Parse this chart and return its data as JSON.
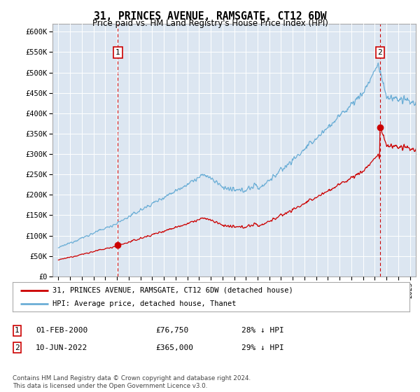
{
  "title": "31, PRINCES AVENUE, RAMSGATE, CT12 6DW",
  "subtitle": "Price paid vs. HM Land Registry's House Price Index (HPI)",
  "ylim": [
    0,
    620000
  ],
  "yticks": [
    0,
    50000,
    100000,
    150000,
    200000,
    250000,
    300000,
    350000,
    400000,
    450000,
    500000,
    550000,
    600000
  ],
  "ytick_labels": [
    "£0",
    "£50K",
    "£100K",
    "£150K",
    "£200K",
    "£250K",
    "£300K",
    "£350K",
    "£400K",
    "£450K",
    "£500K",
    "£550K",
    "£600K"
  ],
  "sale1_date_x": 2000.08,
  "sale1_price": 76750,
  "sale1_label": "1",
  "sale2_date_x": 2022.44,
  "sale2_price": 365000,
  "sale2_label": "2",
  "legend_line1": "31, PRINCES AVENUE, RAMSGATE, CT12 6DW (detached house)",
  "legend_line2": "HPI: Average price, detached house, Thanet",
  "table_row1": [
    "1",
    "01-FEB-2000",
    "£76,750",
    "28% ↓ HPI"
  ],
  "table_row2": [
    "2",
    "10-JUN-2022",
    "£365,000",
    "29% ↓ HPI"
  ],
  "footer": "Contains HM Land Registry data © Crown copyright and database right 2024.\nThis data is licensed under the Open Government Licence v3.0.",
  "plot_bg_color": "#dce6f1",
  "hpi_color": "#6baed6",
  "sale_color": "#cc0000",
  "vline_color": "#cc0000",
  "grid_color": "#ffffff",
  "xlim_left": 1994.5,
  "xlim_right": 2025.5,
  "xstart": 1995,
  "xend": 2025
}
